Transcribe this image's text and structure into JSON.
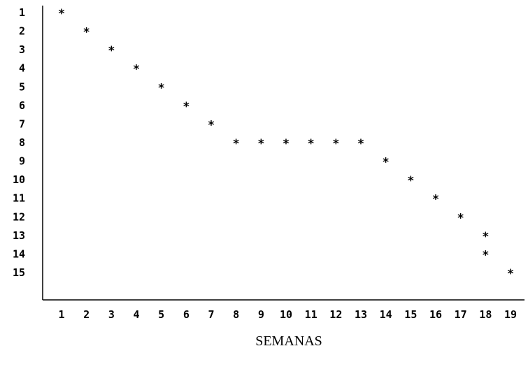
{
  "chart_data": {
    "type": "scatter",
    "title": "",
    "xlabel": "SEMANAS",
    "ylabel": "",
    "x_ticks": [
      "1",
      "2",
      "3",
      "4",
      "5",
      "6",
      "7",
      "8",
      "9",
      "10",
      "11",
      "12",
      "13",
      "14",
      "15",
      "16",
      "17",
      "18",
      "19"
    ],
    "y_ticks": [
      "1",
      "2",
      "3",
      "4",
      "5",
      "6",
      "7",
      "8",
      "9",
      "10",
      "11",
      "12",
      "13",
      "14",
      "15"
    ],
    "xlim": [
      1,
      19
    ],
    "ylim": [
      1,
      15
    ],
    "y_inverted": true,
    "grid": false,
    "marker": "*",
    "points": [
      {
        "x": 1,
        "y": 1
      },
      {
        "x": 2,
        "y": 2
      },
      {
        "x": 3,
        "y": 3
      },
      {
        "x": 4,
        "y": 4
      },
      {
        "x": 5,
        "y": 5
      },
      {
        "x": 6,
        "y": 6
      },
      {
        "x": 7,
        "y": 7
      },
      {
        "x": 8,
        "y": 8
      },
      {
        "x": 9,
        "y": 8
      },
      {
        "x": 10,
        "y": 8
      },
      {
        "x": 11,
        "y": 8
      },
      {
        "x": 12,
        "y": 8
      },
      {
        "x": 13,
        "y": 8
      },
      {
        "x": 14,
        "y": 9
      },
      {
        "x": 15,
        "y": 10
      },
      {
        "x": 16,
        "y": 11
      },
      {
        "x": 17,
        "y": 12
      },
      {
        "x": 18,
        "y": 13
      },
      {
        "x": 18,
        "y": 14
      },
      {
        "x": 19,
        "y": 15
      }
    ]
  }
}
